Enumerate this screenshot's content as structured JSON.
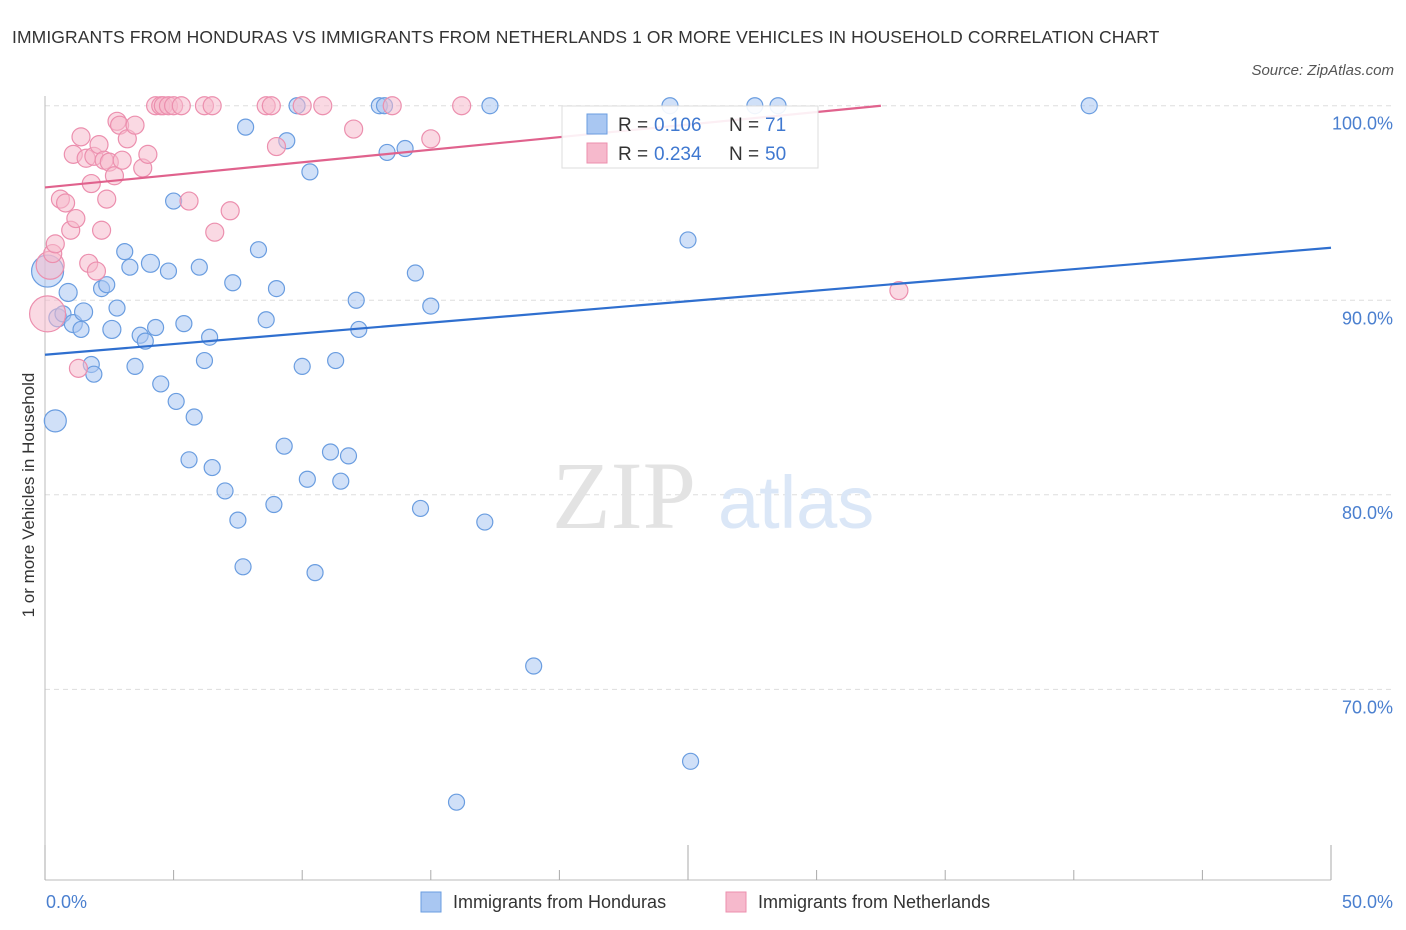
{
  "title": "IMMIGRANTS FROM HONDURAS VS IMMIGRANTS FROM NETHERLANDS 1 OR MORE VEHICLES IN HOUSEHOLD CORRELATION CHART",
  "source": "Source: ZipAtlas.com",
  "watermark": {
    "zip": "ZIP",
    "atlas": "atlas"
  },
  "colors": {
    "honduras_fill": "#a9c7f2",
    "honduras_stroke": "#6a9de0",
    "honduras_line": "#2f6fcf",
    "netherlands_fill": "#f6b9cc",
    "netherlands_stroke": "#ec8fae",
    "netherlands_line": "#e0628d",
    "axis_text": "#4a7fcf",
    "grid": "#dddddd"
  },
  "legend": {
    "r_label": "R =",
    "n_label": "N =",
    "rows": [
      {
        "series": "honduras",
        "r": "0.106",
        "n": "71"
      },
      {
        "series": "netherlands",
        "r": "0.234",
        "n": "50"
      }
    ]
  },
  "chart_data": {
    "type": "scatter",
    "title": "IMMIGRANTS FROM HONDURAS VS IMMIGRANTS FROM NETHERLANDS 1 OR MORE VEHICLES IN HOUSEHOLD CORRELATION CHART",
    "xlabel": "",
    "ylabel": "1 or more Vehicles in Household",
    "x_range": [
      0,
      50
    ],
    "y_range": [
      60.2,
      100.5
    ],
    "x_tick_labels": [
      {
        "value": 0,
        "label": "0.0%"
      },
      {
        "value": 50,
        "label": "50.0%"
      }
    ],
    "y_tick_labels": [
      {
        "value": 100,
        "label": "100.0%"
      },
      {
        "value": 90,
        "label": "90.0%"
      },
      {
        "value": 80,
        "label": "80.0%"
      },
      {
        "value": 70,
        "label": "70.0%"
      }
    ],
    "y_gridlines": [
      100,
      90,
      80,
      70
    ],
    "legend_position": "top-center",
    "series": [
      {
        "name": "Immigrants from Honduras",
        "key": "honduras",
        "trend": {
          "x": [
            0,
            50
          ],
          "y": [
            87.2,
            92.7
          ]
        },
        "points": [
          [
            0.1,
            91.5,
            16
          ],
          [
            0.4,
            83.8,
            11
          ],
          [
            0.5,
            89.1,
            9
          ],
          [
            0.7,
            89.3,
            8
          ],
          [
            0.9,
            90.4,
            9
          ],
          [
            1.1,
            88.8,
            9
          ],
          [
            1.4,
            88.5,
            8
          ],
          [
            1.5,
            89.4,
            9
          ],
          [
            1.8,
            86.7,
            8
          ],
          [
            1.9,
            86.2,
            8
          ],
          [
            2.2,
            90.6,
            8
          ],
          [
            2.4,
            90.8,
            8
          ],
          [
            2.6,
            88.5,
            9
          ],
          [
            2.8,
            89.6,
            8
          ],
          [
            3.1,
            92.5,
            8
          ],
          [
            3.3,
            91.7,
            8
          ],
          [
            3.5,
            86.6,
            8
          ],
          [
            3.7,
            88.2,
            8
          ],
          [
            3.9,
            87.9,
            8
          ],
          [
            4.1,
            91.9,
            9
          ],
          [
            4.3,
            88.6,
            8
          ],
          [
            4.5,
            85.7,
            8
          ],
          [
            4.8,
            91.5,
            8
          ],
          [
            5.0,
            95.1,
            8
          ],
          [
            5.1,
            84.8,
            8
          ],
          [
            5.4,
            88.8,
            8
          ],
          [
            5.6,
            81.8,
            8
          ],
          [
            5.8,
            84.0,
            8
          ],
          [
            6.0,
            91.7,
            8
          ],
          [
            6.2,
            86.9,
            8
          ],
          [
            6.4,
            88.1,
            8
          ],
          [
            6.5,
            81.4,
            8
          ],
          [
            7.0,
            80.2,
            8
          ],
          [
            7.3,
            90.9,
            8
          ],
          [
            7.5,
            78.7,
            8
          ],
          [
            7.7,
            76.3,
            8
          ],
          [
            7.8,
            98.9,
            8
          ],
          [
            8.3,
            92.6,
            8
          ],
          [
            8.6,
            89.0,
            8
          ],
          [
            8.9,
            79.5,
            8
          ],
          [
            9.0,
            90.6,
            8
          ],
          [
            9.3,
            82.5,
            8
          ],
          [
            9.4,
            98.2,
            8
          ],
          [
            9.8,
            100.0,
            8
          ],
          [
            10.0,
            86.6,
            8
          ],
          [
            10.2,
            80.8,
            8
          ],
          [
            10.3,
            96.6,
            8
          ],
          [
            10.5,
            76.0,
            8
          ],
          [
            11.1,
            82.2,
            8
          ],
          [
            11.3,
            86.9,
            8
          ],
          [
            11.5,
            80.7,
            8
          ],
          [
            11.8,
            82.0,
            8
          ],
          [
            12.1,
            90.0,
            8
          ],
          [
            12.2,
            88.5,
            8
          ],
          [
            13.0,
            100.0,
            8
          ],
          [
            13.2,
            100.0,
            8
          ],
          [
            13.3,
            97.6,
            8
          ],
          [
            14.0,
            97.8,
            8
          ],
          [
            14.4,
            91.4,
            8
          ],
          [
            14.6,
            79.3,
            8
          ],
          [
            15.0,
            89.7,
            8
          ],
          [
            16.0,
            64.2,
            8
          ],
          [
            17.1,
            78.6,
            8
          ],
          [
            17.3,
            100.0,
            8
          ],
          [
            19.0,
            71.2,
            8
          ],
          [
            24.3,
            100.0,
            8
          ],
          [
            25.0,
            93.1,
            8
          ],
          [
            25.1,
            66.3,
            8
          ],
          [
            27.6,
            100.0,
            8
          ],
          [
            28.5,
            100.0,
            8
          ],
          [
            40.6,
            100.0,
            8
          ]
        ]
      },
      {
        "name": "Immigrants from Netherlands",
        "key": "netherlands",
        "trend": {
          "x": [
            0,
            32.5
          ],
          "y": [
            95.8,
            100.0
          ]
        },
        "points": [
          [
            0.1,
            89.3,
            18
          ],
          [
            0.2,
            91.8,
            14
          ],
          [
            0.3,
            92.4,
            9
          ],
          [
            0.4,
            92.9,
            9
          ],
          [
            0.6,
            95.2,
            9
          ],
          [
            0.8,
            95.0,
            9
          ],
          [
            1.0,
            93.6,
            9
          ],
          [
            1.1,
            97.5,
            9
          ],
          [
            1.2,
            94.2,
            9
          ],
          [
            1.3,
            86.5,
            9
          ],
          [
            1.4,
            98.4,
            9
          ],
          [
            1.6,
            97.3,
            9
          ],
          [
            1.7,
            91.9,
            9
          ],
          [
            1.8,
            96.0,
            9
          ],
          [
            1.9,
            97.4,
            9
          ],
          [
            2.0,
            91.5,
            9
          ],
          [
            2.1,
            98.0,
            9
          ],
          [
            2.2,
            93.6,
            9
          ],
          [
            2.3,
            97.2,
            9
          ],
          [
            2.4,
            95.2,
            9
          ],
          [
            2.5,
            97.1,
            9
          ],
          [
            2.7,
            96.4,
            9
          ],
          [
            2.8,
            99.2,
            9
          ],
          [
            2.9,
            99.0,
            9
          ],
          [
            3.0,
            97.2,
            9
          ],
          [
            3.2,
            98.3,
            9
          ],
          [
            3.5,
            99.0,
            9
          ],
          [
            3.8,
            96.8,
            9
          ],
          [
            4.0,
            97.5,
            9
          ],
          [
            4.3,
            100.0,
            9
          ],
          [
            4.5,
            100.0,
            9
          ],
          [
            4.6,
            100.0,
            9
          ],
          [
            4.8,
            100.0,
            9
          ],
          [
            5.0,
            100.0,
            9
          ],
          [
            5.3,
            100.0,
            9
          ],
          [
            5.6,
            95.1,
            9
          ],
          [
            6.2,
            100.0,
            9
          ],
          [
            6.5,
            100.0,
            9
          ],
          [
            6.6,
            93.5,
            9
          ],
          [
            7.2,
            94.6,
            9
          ],
          [
            8.6,
            100.0,
            9
          ],
          [
            8.8,
            100.0,
            9
          ],
          [
            9.0,
            97.9,
            9
          ],
          [
            10.0,
            100.0,
            9
          ],
          [
            10.8,
            100.0,
            9
          ],
          [
            12.0,
            98.8,
            9
          ],
          [
            13.5,
            100.0,
            9
          ],
          [
            15.0,
            98.3,
            9
          ],
          [
            16.2,
            100.0,
            9
          ],
          [
            33.2,
            90.5,
            9
          ]
        ]
      }
    ]
  },
  "bottom_legend": [
    {
      "series": "honduras",
      "label": "Immigrants from Honduras"
    },
    {
      "series": "netherlands",
      "label": "Immigrants from Netherlands"
    }
  ]
}
